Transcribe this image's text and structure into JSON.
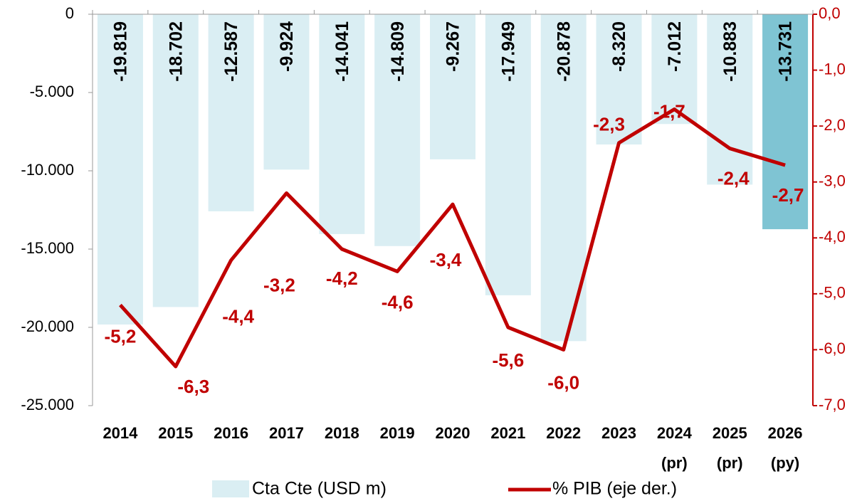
{
  "chart_data": {
    "type": "bar_line",
    "categories": [
      "2014",
      "2015",
      "2016",
      "2017",
      "2018",
      "2019",
      "2020",
      "2021",
      "2022",
      "2023",
      "2024 (pr)",
      "2025 (pr)",
      "2026 (py)"
    ],
    "series": [
      {
        "name": "Cta Cte (USD m)",
        "type": "bar",
        "colors": [
          "#daeef3",
          "#daeef3",
          "#daeef3",
          "#daeef3",
          "#daeef3",
          "#daeef3",
          "#daeef3",
          "#daeef3",
          "#daeef3",
          "#daeef3",
          "#daeef3",
          "#daeef3",
          "#7fc4d3"
        ],
        "color": "#daeef3",
        "values": [
          -19819,
          -18702,
          -12587,
          -9924,
          -14041,
          -14809,
          -9267,
          -17949,
          -20878,
          -8320,
          -7012,
          -10883,
          -13731
        ],
        "value_labels": [
          "-19.819",
          "-18.702",
          "-12.587",
          "-9.924",
          "-14.041",
          "-14.809",
          "-9.267",
          "-17.949",
          "-20.878",
          "-8.320",
          "-7.012",
          "-10.883",
          "-13.731"
        ]
      },
      {
        "name": "% PIB (eje der.)",
        "type": "line",
        "axis": "y2",
        "color": "#c00000",
        "values": [
          -5.2,
          -6.3,
          -4.4,
          -3.2,
          -4.2,
          -4.6,
          -3.4,
          -5.6,
          -6.0,
          -2.3,
          -1.7,
          -2.4,
          -2.7
        ],
        "value_labels": [
          "-5,2",
          "-6,3",
          "-4,4",
          "-3,2",
          "-4,2",
          "-4,6",
          "-3,4",
          "-5,6",
          "-6,0",
          "-2,3",
          "-1,7",
          "-2,4",
          "-2,7"
        ]
      }
    ],
    "ylim": [
      -25000,
      0
    ],
    "yticks": [
      0,
      {
        "value": -5000,
        "label": "-5.000"
      },
      {
        "value": -10000,
        "label": "-10.000"
      },
      {
        "value": -15000,
        "label": "-15.000"
      },
      {
        "value": -20000,
        "label": "-20.000"
      },
      {
        "value": -25000,
        "label": "-25.000"
      }
    ],
    "y2lim": [
      -7,
      0
    ],
    "y2ticks": [
      {
        "value": 0,
        "label": "0,0"
      },
      {
        "value": -1,
        "label": "-1,0"
      },
      {
        "value": -2,
        "label": "-2,0"
      },
      {
        "value": -3,
        "label": "-3,0"
      },
      {
        "value": -4,
        "label": "-4,0"
      },
      {
        "value": -5,
        "label": "-5,0"
      },
      {
        "value": -6,
        "label": "-6,0"
      },
      {
        "value": -7,
        "label": "-7,0"
      }
    ],
    "legend": "bottom"
  }
}
